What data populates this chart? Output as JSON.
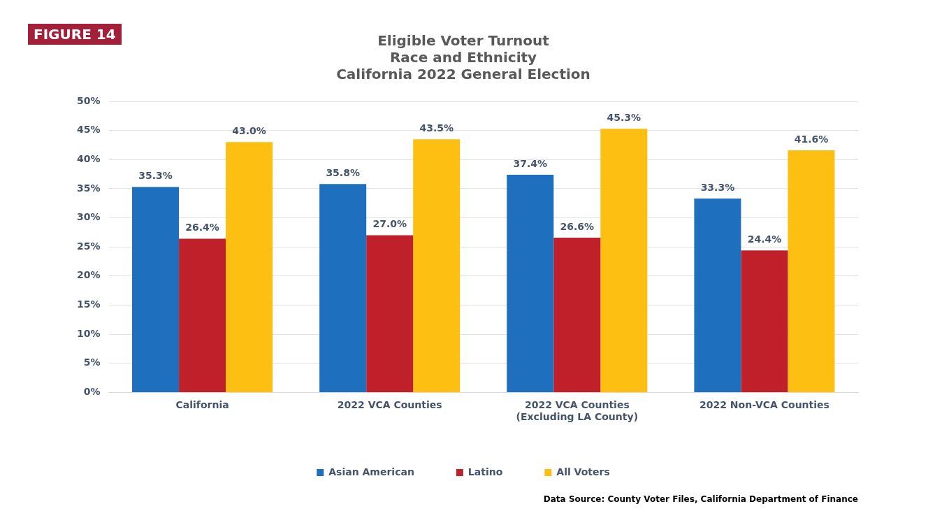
{
  "chart_data": {
    "type": "bar",
    "title": "Eligible Voter Turnout\nRace and Ethnicity\nCalifornia 2022 General Election",
    "categories": [
      "California",
      "2022 VCA Counties",
      "2022 VCA Counties\n(Excluding LA County)",
      "2022 Non-VCA Counties"
    ],
    "series": [
      {
        "name": "Asian American",
        "color": "#1f6fbf",
        "values": [
          35.3,
          35.8,
          37.4,
          33.3
        ],
        "value_labels": [
          "35.3%",
          "35.8%",
          "37.4%",
          "33.3%"
        ]
      },
      {
        "name": "Latino",
        "color": "#c0202a",
        "values": [
          26.4,
          27.0,
          26.6,
          24.4
        ],
        "value_labels": [
          "26.4%",
          "27.0%",
          "26.6%",
          "24.4%"
        ]
      },
      {
        "name": "All Voters",
        "color": "#fcbf12",
        "values": [
          43.0,
          43.5,
          45.3,
          41.6
        ],
        "value_labels": [
          "43.0%",
          "43.5%",
          "45.3%",
          "41.6%"
        ]
      }
    ],
    "ylim": [
      0,
      50
    ],
    "yticks": [
      {
        "value": 0,
        "label": "0%"
      },
      {
        "value": 5,
        "label": "5%"
      },
      {
        "value": 10,
        "label": "10%"
      },
      {
        "value": 15,
        "label": "15%"
      },
      {
        "value": 20,
        "label": "20%"
      },
      {
        "value": 25,
        "label": "25%"
      },
      {
        "value": 30,
        "label": "30%"
      },
      {
        "value": 35,
        "label": "35%"
      },
      {
        "value": 40,
        "label": "40%"
      },
      {
        "value": 45,
        "label": "45%"
      },
      {
        "value": 50,
        "label": "50%"
      }
    ],
    "grid": "y",
    "legend": "bottom",
    "annotations": [
      "FIGURE 14",
      "Data Source: County Voter Files, California Department of Finance"
    ]
  }
}
